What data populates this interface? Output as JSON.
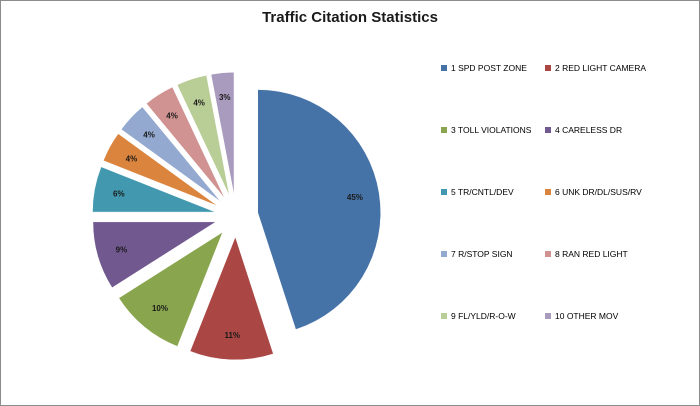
{
  "chart_data": {
    "type": "pie",
    "title": "Traffic Citation Statistics",
    "exploded": true,
    "legend_position": "right",
    "slices": [
      {
        "label": "1 SPD POST ZONE",
        "value": 45,
        "data_label": "45%",
        "color": "#4572A7"
      },
      {
        "label": "2 RED LIGHT CAMERA",
        "value": 11,
        "data_label": "11%",
        "color": "#AA4643"
      },
      {
        "label": "3 TOLL VIOLATIONS",
        "value": 10,
        "data_label": "10%",
        "color": "#89A54E"
      },
      {
        "label": "4 CARELESS DR",
        "value": 9,
        "data_label": "9%",
        "color": "#71588F"
      },
      {
        "label": "5 TR/CNTL/DEV",
        "value": 6,
        "data_label": "6%",
        "color": "#4198AF"
      },
      {
        "label": "6 UNK DR/DL/SUS/RV",
        "value": 4,
        "data_label": "4%",
        "color": "#DB843D"
      },
      {
        "label": "7 R/STOP SIGN",
        "value": 4,
        "data_label": "4%",
        "color": "#93A9CF"
      },
      {
        "label": "8 RAN RED LIGHT",
        "value": 4,
        "data_label": "4%",
        "color": "#D19392"
      },
      {
        "label": "9 FL/YLD/R-O-W",
        "value": 4,
        "data_label": "4%",
        "color": "#B9CD96"
      },
      {
        "label": "10 OTHER MOV",
        "value": 3,
        "data_label": "3%",
        "color": "#A99BBD"
      }
    ]
  }
}
